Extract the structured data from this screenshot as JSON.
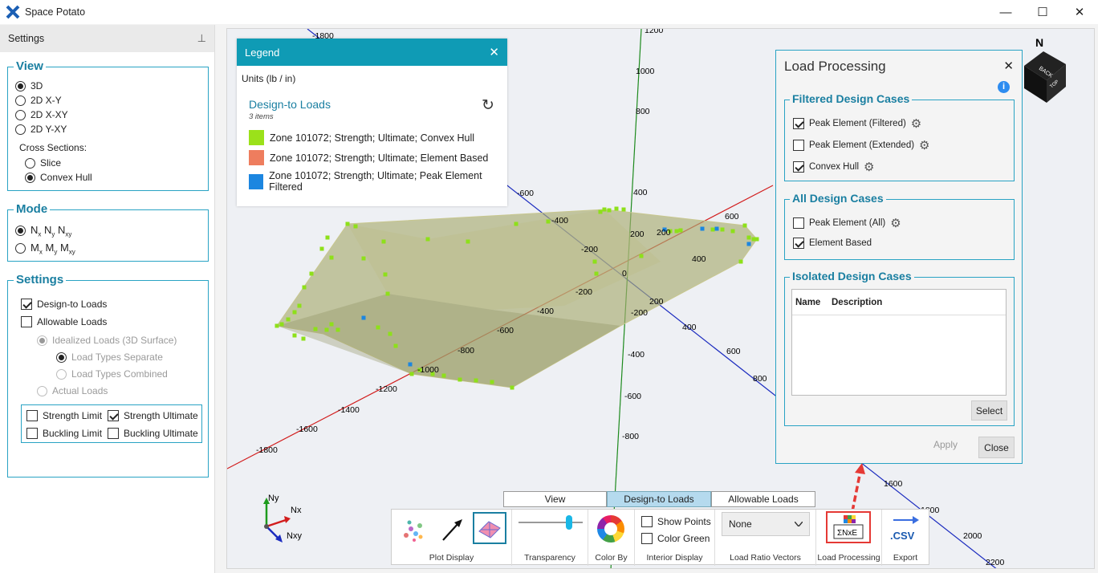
{
  "window": {
    "title": "Space Potato",
    "min_glyph": "—",
    "max_glyph": "☐",
    "close_glyph": "✕"
  },
  "settings_panel": {
    "header": "Settings",
    "pin_glyph": "⊥",
    "view": {
      "title": "View",
      "options": [
        "3D",
        "2D X-Y",
        "2D X-XY",
        "2D Y-XY"
      ],
      "selected": "3D",
      "cross_sections_label": "Cross Sections:",
      "cross_sections": [
        "Slice",
        "Convex Hull"
      ],
      "cross_selected": "Convex Hull"
    },
    "mode": {
      "title": "Mode",
      "option1": {
        "main": "N",
        "parts": [
          [
            "x",
            "N"
          ],
          [
            "y",
            "N"
          ],
          [
            "xy",
            ""
          ]
        ]
      },
      "option2": {
        "parts": [
          [
            "x",
            "M"
          ],
          [
            "y",
            "M"
          ],
          [
            "xy",
            ""
          ]
        ]
      },
      "selected": "N"
    },
    "settings": {
      "title": "Settings",
      "design_to_loads": "Design-to Loads",
      "allowable_loads": "Allowable Loads",
      "idealized": "Idealized Loads (3D Surface)",
      "separate": "Load Types Separate",
      "combined": "Load Types Combined",
      "actual": "Actual Loads",
      "strength_limit": "Strength Limit",
      "strength_ultimate": "Strength Ultimate",
      "buckling_limit": "Buckling Limit",
      "buckling_ultimate": "Buckling Ultimate"
    }
  },
  "legend": {
    "title": "Legend",
    "close_glyph": "✕",
    "units": "Units (lb / in)",
    "section_title": "Design-to Loads",
    "count": "3 items",
    "refresh_glyph": "↻",
    "items": [
      {
        "label": "Zone 101072; Strength; Ultimate; Convex Hull",
        "color": "#9be11a"
      },
      {
        "label": "Zone 101072; Strength; Ultimate; Element Based",
        "color": "#ee7d5e"
      },
      {
        "label": "Zone 101072; Strength; Ultimate; Peak Element Filtered",
        "color": "#1c86e0"
      }
    ]
  },
  "load_processing": {
    "title": "Load Processing",
    "close_glyph": "✕",
    "info_glyph": "i",
    "filtered": {
      "title": "Filtered Design Cases",
      "items": [
        {
          "label": "Peak Element (Filtered)",
          "checked": true
        },
        {
          "label": "Peak Element (Extended)",
          "checked": false
        },
        {
          "label": "Convex Hull",
          "checked": true
        }
      ]
    },
    "all": {
      "title": "All Design Cases",
      "items": [
        {
          "label": "Peak Element (All)",
          "checked": false
        },
        {
          "label": "Element Based",
          "checked": true
        }
      ]
    },
    "isolated": {
      "title": "Isolated Design Cases",
      "col_name": "Name",
      "col_desc": "Description",
      "select": "Select"
    },
    "apply": "Apply",
    "close": "Close"
  },
  "tabs": [
    "View",
    "Design-to Loads",
    "Allowable Loads"
  ],
  "active_tab": "Design-to Loads",
  "toolbar": {
    "plot_display": "Plot Display",
    "transparency": "Transparency",
    "transparency_value": 0.82,
    "color_by": "Color By",
    "show_points": "Show Points",
    "color_green": "Color Green",
    "interior_display": "Interior Display",
    "ratio_value": "None",
    "load_ratio_vectors": "Load Ratio Vectors",
    "load_processing": "Load Processing",
    "export": "Export",
    "csv": ".CSV",
    "sigma": "ΣNxE"
  },
  "axis_triad": {
    "ny": "Ny",
    "nx": "Nx",
    "nxy": "Nxy"
  },
  "compass": {
    "n": "N",
    "back": "BACK",
    "top": "TOP",
    "left": "LEFT"
  },
  "axis_ticks": {
    "red": [
      "-1800",
      "-1600",
      "-1400",
      "-1200",
      "-1000",
      "-800",
      "-600",
      "-400",
      "-200",
      "200",
      "400",
      "600"
    ],
    "blue": [
      "-1800",
      "-1400",
      "-600",
      "-400",
      "-200",
      "200",
      "400",
      "600",
      "800",
      "1600",
      "1800",
      "2000",
      "2200"
    ],
    "green": [
      "1200",
      "1000",
      "800",
      "400",
      "200",
      "-200",
      "-400",
      "-600",
      "-800"
    ],
    "origin": "0"
  }
}
